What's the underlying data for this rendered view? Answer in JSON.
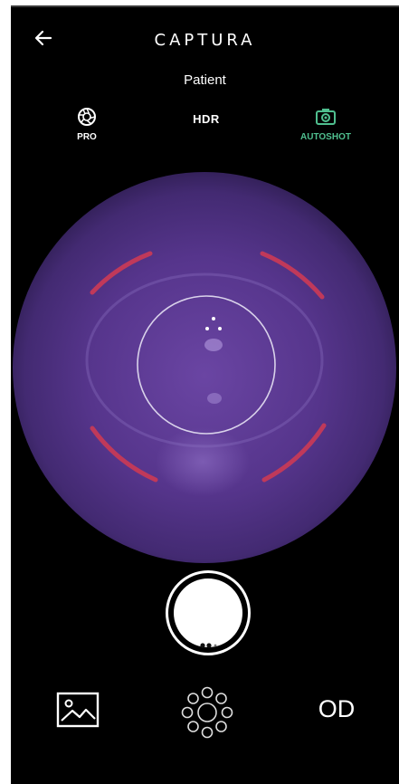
{
  "header": {
    "title": "CAPTURA",
    "patient": "Patient"
  },
  "modes": {
    "pro": {
      "label": "PRO",
      "icon": "aperture-icon"
    },
    "hdr": {
      "label": "HDR"
    },
    "autoshot": {
      "label": "AUTOSHOT",
      "icon": "camera-icon",
      "color": "#4fbf8f"
    }
  },
  "footer": {
    "gallery_icon": "gallery-icon",
    "lights_icon": "led-ring-icon",
    "eye_side": "OD"
  },
  "colors": {
    "background": "#000000",
    "accent": "#4fbf8f",
    "fundus": "#5b3a8c",
    "guide_arcs": "#c0395a"
  }
}
